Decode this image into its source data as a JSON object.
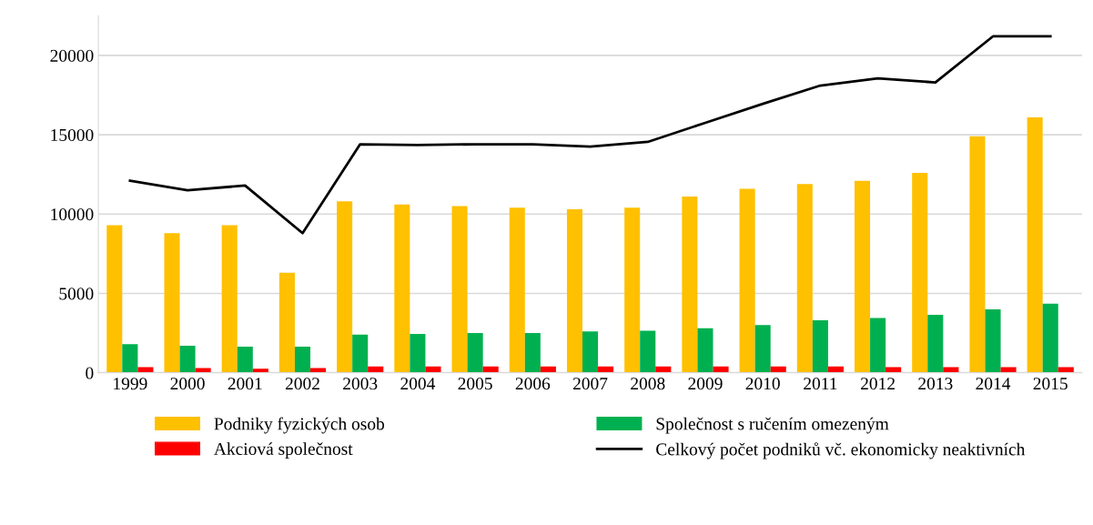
{
  "chart_data": {
    "type": "bar",
    "categories": [
      "1999",
      "2000",
      "2001",
      "2002",
      "2003",
      "2004",
      "2005",
      "2006",
      "2007",
      "2008",
      "2009",
      "2010",
      "2011",
      "2012",
      "2013",
      "2014",
      "2015"
    ],
    "series": [
      {
        "name": "Podniky fyzických osob",
        "color": "#ffc000",
        "values": [
          9300,
          8800,
          9300,
          6300,
          10800,
          10600,
          10500,
          10400,
          10300,
          10400,
          11100,
          11600,
          11900,
          12100,
          12600,
          14900,
          16100
        ]
      },
      {
        "name": "Společnost s ručením omezeným",
        "color": "#00b050",
        "values": [
          1800,
          1700,
          1650,
          1650,
          2400,
          2450,
          2500,
          2500,
          2600,
          2650,
          2800,
          3000,
          3300,
          3450,
          3650,
          4000,
          4350
        ]
      },
      {
        "name": "Akciová společnost",
        "color": "#ff0000",
        "values": [
          350,
          300,
          250,
          300,
          400,
          400,
          400,
          400,
          400,
          400,
          400,
          400,
          400,
          350,
          350,
          350,
          350
        ]
      },
      {
        "name": "Celkový počet podniků vč. ekonomicky neaktivních",
        "color": "#000000",
        "type": "line",
        "values": [
          12100,
          11500,
          11800,
          8800,
          14400,
          14350,
          14400,
          14400,
          14250,
          14550,
          15750,
          16950,
          18100,
          18550,
          18300,
          21200,
          21200
        ]
      }
    ],
    "ylim": [
      0,
      22500
    ],
    "yticks": [
      0,
      5000,
      10000,
      15000,
      20000
    ],
    "grid": "y",
    "legend": "bottom"
  }
}
